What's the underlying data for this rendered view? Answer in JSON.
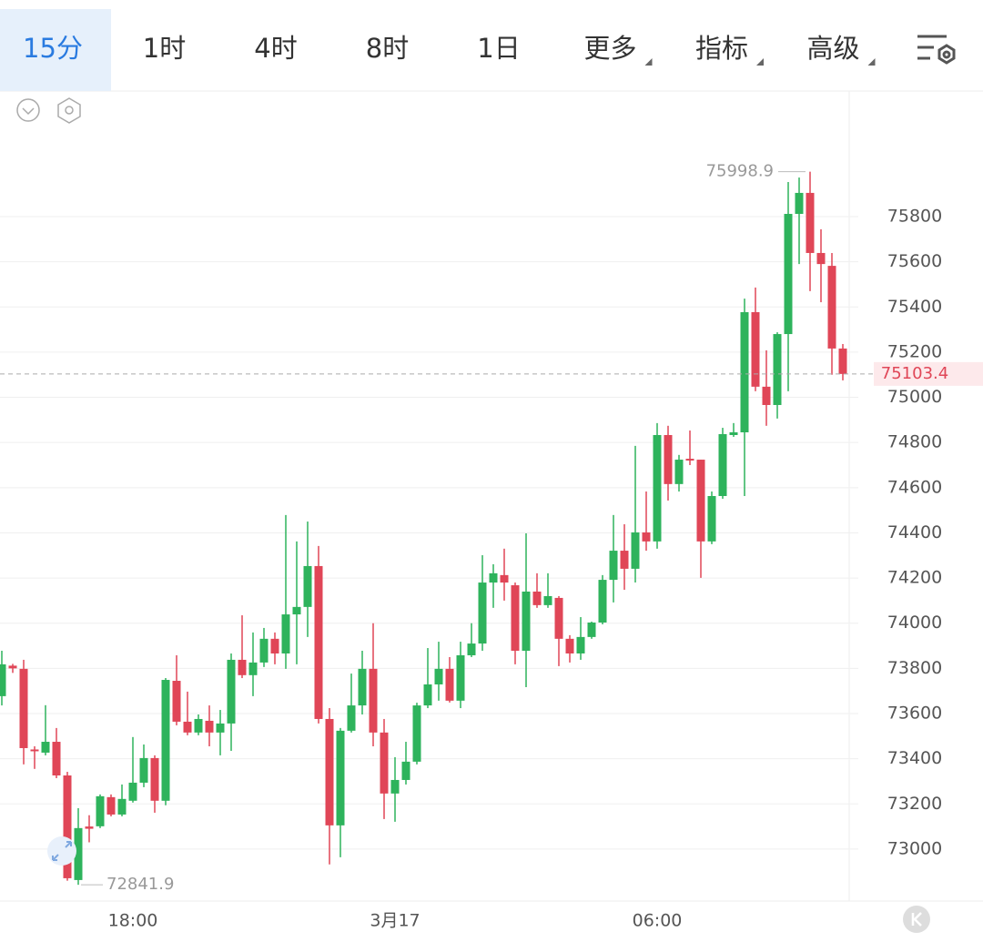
{
  "toolbar": {
    "tabs": [
      {
        "label": "15分"
      },
      {
        "label": "1时"
      },
      {
        "label": "4时"
      },
      {
        "label": "8时"
      },
      {
        "label": "1日"
      },
      {
        "label": "更多",
        "menu": true
      },
      {
        "label": "指标",
        "menu": true
      },
      {
        "label": "高级",
        "menu": true
      }
    ],
    "active": 0
  },
  "chart_data": {
    "type": "candlestick",
    "categories": [
      null,
      null,
      null,
      null,
      null,
      null,
      null,
      null,
      null,
      null,
      null,
      null,
      "18:00",
      null,
      null,
      null,
      null,
      null,
      null,
      null,
      null,
      null,
      null,
      null,
      null,
      null,
      null,
      null,
      null,
      null,
      null,
      null,
      null,
      null,
      null,
      null,
      "3月17",
      null,
      null,
      null,
      null,
      null,
      null,
      null,
      null,
      null,
      null,
      null,
      null,
      null,
      null,
      null,
      null,
      null,
      null,
      null,
      null,
      null,
      null,
      null,
      "06:00",
      null,
      null,
      null,
      null,
      null,
      null,
      null,
      null,
      null,
      null,
      null,
      null,
      null,
      null,
      null,
      null,
      null
    ],
    "open": [
      73677,
      73812,
      73798,
      73441,
      73427,
      73475,
      73326,
      72863,
      73100,
      73101,
      73230,
      73153,
      73214,
      73294,
      73403,
      73214,
      73745,
      73564,
      73516,
      73568,
      73516,
      73556,
      73838,
      73770,
      73826,
      73931,
      73866,
      74039,
      74072,
      74253,
      73576,
      73105,
      73524,
      73636,
      73798,
      73516,
      73246,
      73306,
      73387,
      73636,
      73729,
      73798,
      73657,
      73858,
      73910,
      74180,
      74213,
      74168,
      73878,
      74140,
      74080,
      74112,
      73931,
      73866,
      73939,
      74003,
      74192,
      74321,
      74241,
      74402,
      74362,
      74833,
      74616,
      74728,
      74724,
      74362,
      74563,
      74833,
      74845,
      75377,
      75047,
      74966,
      75280,
      75812,
      75905,
      75639,
      75582,
      75216
    ],
    "high": [
      73878,
      73820,
      73838,
      73455,
      73637,
      73536,
      73342,
      73181,
      73150,
      73242,
      73242,
      73286,
      73496,
      73463,
      73415,
      73757,
      73858,
      73697,
      73596,
      73636,
      73616,
      73866,
      74035,
      73959,
      73979,
      73959,
      74479,
      74362,
      74450,
      74342,
      73624,
      73536,
      73777,
      73878,
      74000,
      73576,
      73407,
      73475,
      73648,
      73890,
      73918,
      73850,
      73918,
      74000,
      74301,
      74261,
      74330,
      74180,
      74398,
      74221,
      74221,
      74120,
      73947,
      74027,
      74007,
      74213,
      74479,
      74438,
      74785,
      74583,
      74886,
      74874,
      74745,
      74853,
      74724,
      74583,
      74865,
      74886,
      75437,
      75486,
      75208,
      75288,
      75953,
      75973,
      75998.9,
      75744,
      75639,
      75236
    ],
    "low": [
      73636,
      73780,
      73375,
      73355,
      73415,
      73314,
      72860,
      72841.9,
      73030,
      73093,
      73145,
      73145,
      73206,
      73274,
      73161,
      73194,
      73548,
      73504,
      73504,
      73455,
      73415,
      73435,
      73757,
      73677,
      73806,
      73818,
      73798,
      73818,
      73939,
      73556,
      72932,
      72964,
      73516,
      73596,
      73455,
      73133,
      73121,
      73286,
      73375,
      73624,
      73657,
      73649,
      73624,
      73850,
      73878,
      74068,
      74100,
      73818,
      73717,
      74068,
      74068,
      73810,
      73826,
      73838,
      73931,
      73995,
      74092,
      74148,
      74180,
      74321,
      74330,
      74543,
      74583,
      74700,
      74201,
      74350,
      74551,
      74825,
      74563,
      75027,
      74874,
      74906,
      75027,
      75590,
      75470,
      75421,
      75100,
      75075
    ],
    "close": [
      73818,
      73800,
      73447,
      73433,
      73475,
      73326,
      72871,
      73093,
      73090,
      73234,
      73153,
      73222,
      73294,
      73403,
      73214,
      73749,
      73564,
      73516,
      73576,
      73516,
      73556,
      73838,
      73770,
      73826,
      73931,
      73866,
      74039,
      74072,
      74253,
      73576,
      73105,
      73524,
      73636,
      73798,
      73516,
      73246,
      73306,
      73387,
      73636,
      73729,
      73798,
      73657,
      73858,
      73910,
      74180,
      74221,
      74180,
      73878,
      74140,
      74080,
      74120,
      73931,
      73866,
      73939,
      74003,
      74192,
      74321,
      74241,
      74402,
      74362,
      74833,
      74616,
      74724,
      74720,
      74362,
      74563,
      74837,
      74845,
      75377,
      75047,
      74966,
      75280,
      75812,
      75905,
      75639,
      75590,
      75216,
      75103.4
    ],
    "high_label_index": 74,
    "low_label_index": 7,
    "up_color": "#2eb35c",
    "down_color": "#e04657",
    "ylim": [
      72770,
      76356
    ],
    "yticks": [
      73000,
      73200,
      73400,
      73600,
      73800,
      74000,
      74200,
      74400,
      74600,
      74800,
      75000,
      75200,
      75400,
      75600,
      75800
    ],
    "grid": true
  }
}
